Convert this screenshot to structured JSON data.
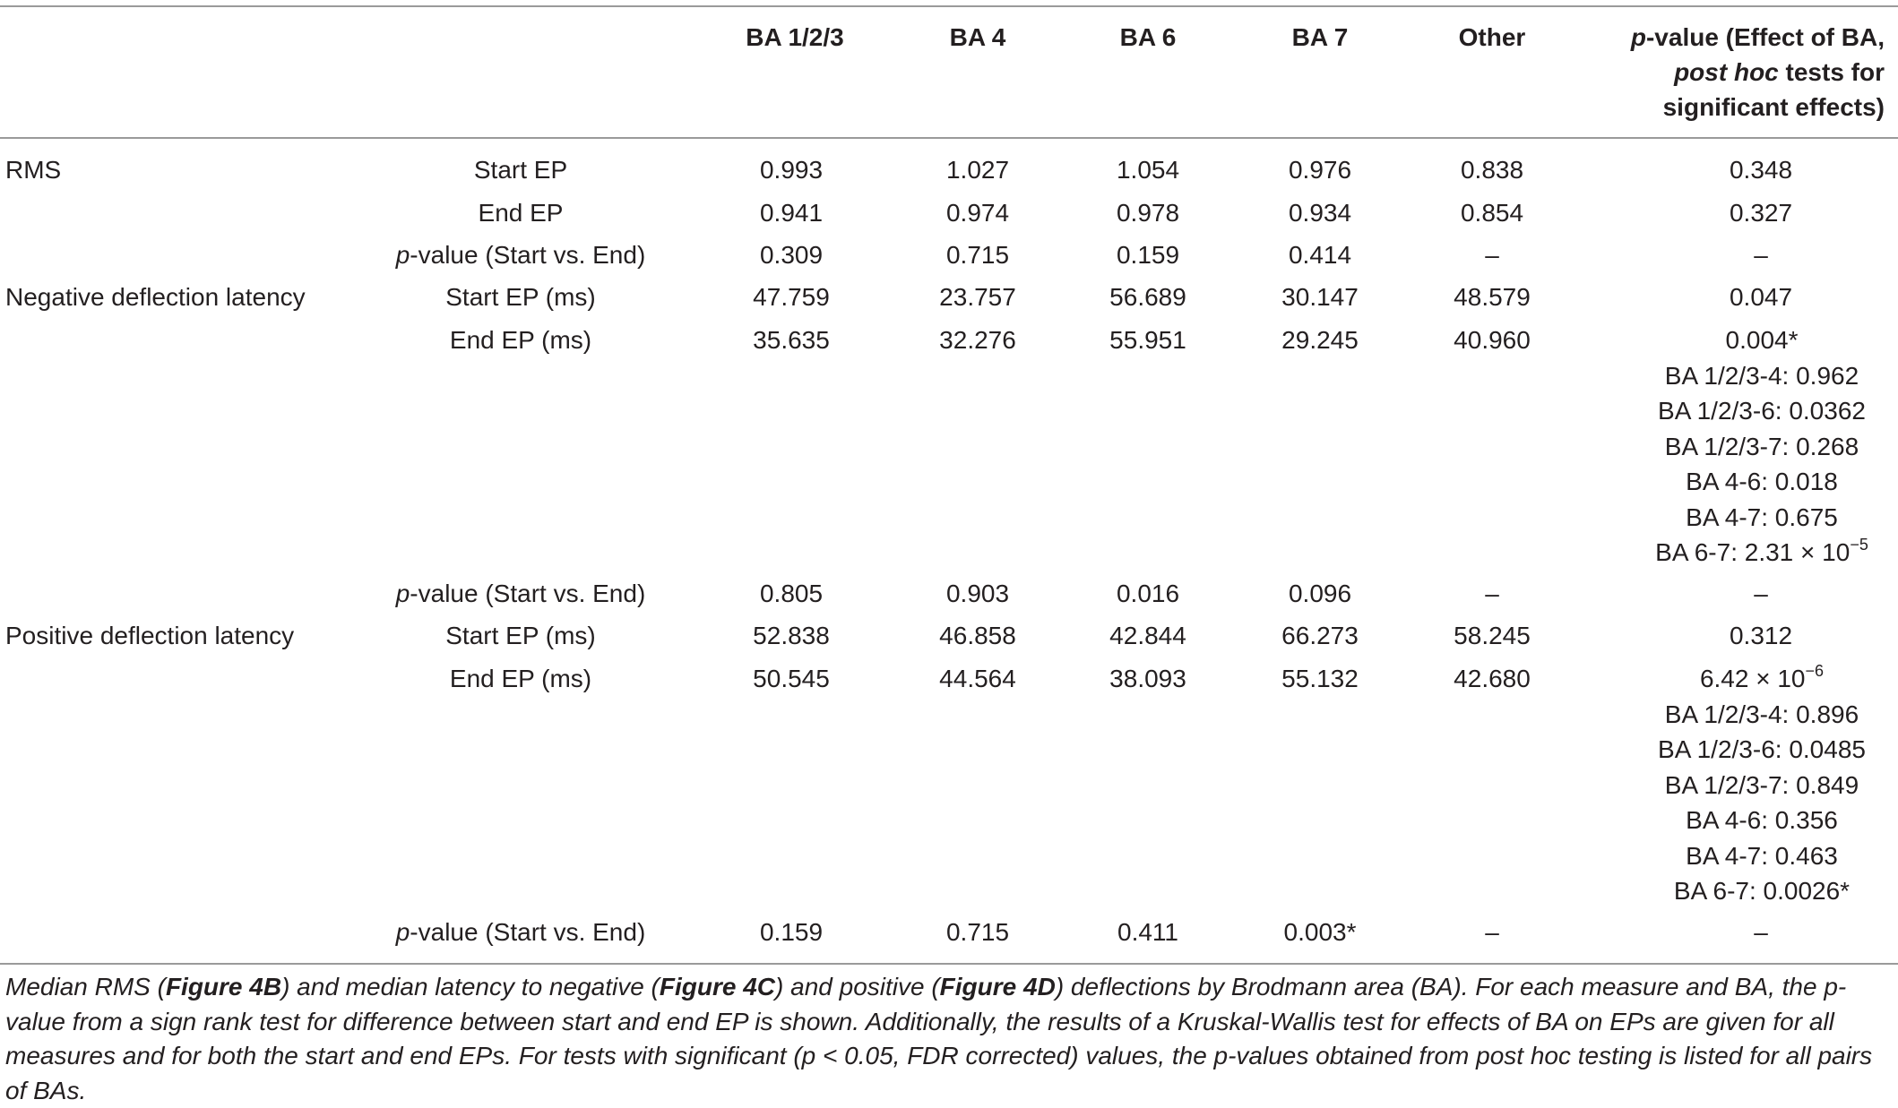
{
  "table": {
    "headers": {
      "ba123": "BA 1/2/3",
      "ba4": "BA 4",
      "ba6": "BA 6",
      "ba7": "BA 7",
      "other": "Other",
      "pvalue_part1": "p",
      "pvalue_part2": "-value (Effect of BA,",
      "pvalue_part3": "post hoc",
      "pvalue_part4": " tests for",
      "pvalue_part5": "significant effects)"
    },
    "groups": {
      "rms": "RMS",
      "neg": "Negative deflection latency",
      "pos": "Positive deflection latency"
    },
    "rows": [
      {
        "sub": "Start EP",
        "v": [
          "0.993",
          "1.027",
          "1.054",
          "0.976",
          "0.838",
          "0.348"
        ]
      },
      {
        "sub": "End EP",
        "v": [
          "0.941",
          "0.974",
          "0.978",
          "0.934",
          "0.854",
          "0.327"
        ]
      },
      {
        "sub_italic": "p",
        "sub": "-value (Start vs. End)",
        "v": [
          "0.309",
          "0.715",
          "0.159",
          "0.414",
          "–",
          "–"
        ]
      },
      {
        "sub": "Start EP (ms)",
        "v": [
          "47.759",
          "23.757",
          "56.689",
          "30.147",
          "48.579",
          "0.047"
        ]
      },
      {
        "sub": "End EP (ms)",
        "v": [
          "35.635",
          "32.276",
          "55.951",
          "29.245",
          "40.960",
          "0.004*"
        ],
        "posthoc": [
          "BA 1/2/3-4: 0.962",
          "BA 1/2/3-6: 0.0362",
          "BA 1/2/3-7: 0.268",
          "BA 4-6: 0.018",
          "BA 4-7: 0.675",
          "BA 6-7: 2.31 × 10",
          "−5"
        ]
      },
      {
        "sub_italic": "p",
        "sub": "-value (Start vs. End)",
        "v": [
          "0.805",
          "0.903",
          "0.016",
          "0.096",
          "–",
          "–"
        ]
      },
      {
        "sub": "Start EP (ms)",
        "v": [
          "52.838",
          "46.858",
          "42.844",
          "66.273",
          "58.245",
          "0.312"
        ]
      },
      {
        "sub": "End EP (ms)",
        "v": [
          "50.545",
          "44.564",
          "38.093",
          "55.132",
          "42.680",
          "6.42 × 10",
          "−6"
        ],
        "posthoc": [
          "BA 1/2/3-4: 0.896",
          "BA 1/2/3-6: 0.0485",
          "BA 1/2/3-7: 0.849",
          "BA 4-6: 0.356",
          "BA 4-7: 0.463",
          "BA 6-7: 0.0026*"
        ]
      },
      {
        "sub_italic": "p",
        "sub": "-value (Start vs. End)",
        "v": [
          "0.159",
          "0.715",
          "0.411",
          "0.003*",
          "–",
          "–"
        ]
      }
    ]
  },
  "caption": {
    "t1": "Median RMS (",
    "b1": "Figure 4B",
    "t2": ") and median latency to negative (",
    "b2": "Figure 4C",
    "t3": ") and positive (",
    "b3": "Figure 4D",
    "t4": ") deflections by Brodmann area (BA). For each measure and BA, the p-value from a sign rank test for difference between start and end EP is shown. Additionally, the results of a Kruskal-Wallis test for effects of BA on EPs are given for all measures and for both the start and end EPs. For tests with significant (p < 0.05, FDR corrected) values, the p-values obtained from post hoc testing is listed for all pairs of BAs."
  }
}
